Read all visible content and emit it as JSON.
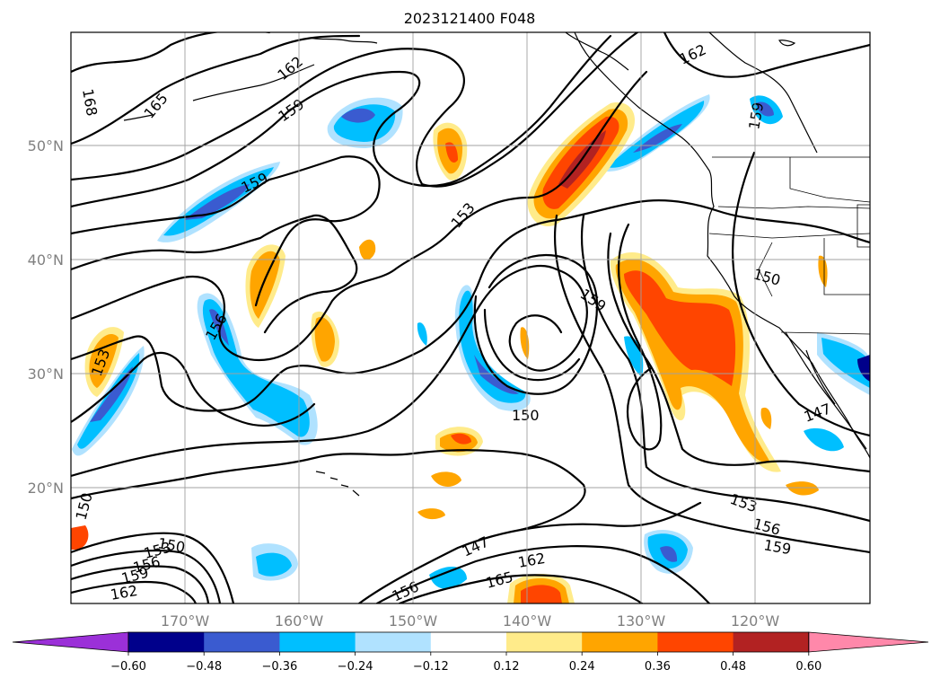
{
  "title": "2023121400 F048",
  "lat_labels": [
    {
      "text": "50°N",
      "lat": 50
    },
    {
      "text": "40°N",
      "lat": 40
    },
    {
      "text": "30°N",
      "lat": 30
    },
    {
      "text": "20°N",
      "lat": 20
    }
  ],
  "lon_labels": [
    {
      "text": "170°W",
      "lon": -170
    },
    {
      "text": "160°W",
      "lon": -160
    },
    {
      "text": "150°W",
      "lon": -150
    },
    {
      "text": "140°W",
      "lon": -140
    },
    {
      "text": "130°W",
      "lon": -130
    },
    {
      "text": "120°W",
      "lon": -120
    }
  ],
  "colorbar": {
    "colors": [
      "#9b30d8",
      "#00008b",
      "#3a5bd0",
      "#00bfff",
      "#b0e2ff",
      "#ffffff",
      "#ffeb8a",
      "#ffa500",
      "#ff4500",
      "#b22222",
      "#ff88aa"
    ],
    "tick_labels": [
      "−0.60",
      "−0.48",
      "−0.36",
      "−0.24",
      "−0.12",
      "0.12",
      "0.24",
      "0.36",
      "0.48",
      "0.60"
    ]
  },
  "contour_labels": [
    {
      "text": "168"
    },
    {
      "text": "165"
    },
    {
      "text": "162"
    },
    {
      "text": "159"
    },
    {
      "text": "159"
    },
    {
      "text": "162"
    },
    {
      "text": "159"
    },
    {
      "text": "153"
    },
    {
      "text": "159"
    },
    {
      "text": "156"
    },
    {
      "text": "153"
    },
    {
      "text": "150"
    },
    {
      "text": "150"
    },
    {
      "text": "147"
    },
    {
      "text": "150"
    },
    {
      "text": "153"
    },
    {
      "text": "156"
    },
    {
      "text": "159"
    },
    {
      "text": "150"
    },
    {
      "text": "153"
    },
    {
      "text": "156"
    },
    {
      "text": "159"
    },
    {
      "text": "162"
    },
    {
      "text": "147"
    },
    {
      "text": "165"
    },
    {
      "text": "162"
    },
    {
      "text": "156"
    }
  ]
}
